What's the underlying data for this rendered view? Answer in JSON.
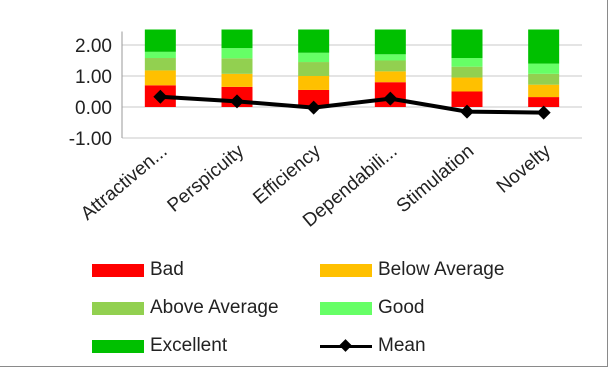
{
  "chart_data": {
    "type": "bar",
    "stacked": true,
    "categories": [
      "Attractiven...",
      "Perspicuity",
      "Efficiency",
      "Dependabili...",
      "Stimulation",
      "Novelty"
    ],
    "ylim": [
      -1.0,
      2.5
    ],
    "yticks": [
      "2.00",
      "1.00",
      "0.00",
      "-1.00"
    ],
    "ytick_values": [
      2.0,
      1.0,
      0.0,
      -1.0
    ],
    "grid": true,
    "series": [
      {
        "name": "Bad",
        "color": "#ff0000",
        "values": [
          0.7,
          0.65,
          0.55,
          0.8,
          0.5,
          0.32
        ]
      },
      {
        "name": "Below Average",
        "color": "#ffc000",
        "values": [
          0.48,
          0.42,
          0.45,
          0.35,
          0.45,
          0.4
        ]
      },
      {
        "name": "Above Average",
        "color": "#92d050",
        "values": [
          0.4,
          0.5,
          0.45,
          0.35,
          0.35,
          0.35
        ]
      },
      {
        "name": "Good",
        "color": "#66ff66",
        "values": [
          0.2,
          0.33,
          0.3,
          0.2,
          0.28,
          0.33
        ]
      },
      {
        "name": "Excellent",
        "color": "#00c000",
        "values": [
          0.72,
          0.6,
          0.75,
          0.8,
          0.92,
          1.1
        ]
      }
    ],
    "mean": {
      "name": "Mean",
      "color": "#000000",
      "values": [
        0.33,
        0.18,
        -0.02,
        0.27,
        -0.15,
        -0.18
      ]
    },
    "legend": {
      "placement": "bottom",
      "items": [
        {
          "label": "Bad",
          "kind": "bar",
          "color": "#ff0000"
        },
        {
          "label": "Below Average",
          "kind": "bar",
          "color": "#ffc000"
        },
        {
          "label": "Above Average",
          "kind": "bar",
          "color": "#92d050"
        },
        {
          "label": "Good",
          "kind": "bar",
          "color": "#66ff66"
        },
        {
          "label": "Excellent",
          "kind": "bar",
          "color": "#00c000"
        },
        {
          "label": "Mean",
          "kind": "line",
          "color": "#000000"
        }
      ]
    }
  }
}
